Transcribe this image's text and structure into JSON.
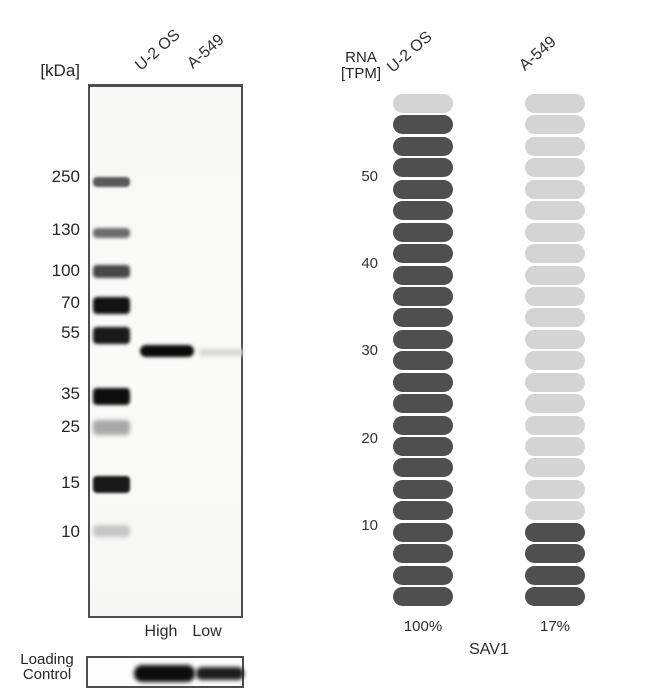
{
  "blot": {
    "unit_label": "[kDa]",
    "markers": [
      "250",
      "130",
      "100",
      "70",
      "55",
      "35",
      "25",
      "15",
      "10"
    ],
    "lanes": [
      {
        "name": "U-2 OS",
        "expression": "High",
        "band": "strong"
      },
      {
        "name": "A-549",
        "expression": "Low",
        "band": "faint"
      }
    ],
    "loading_control": [
      "Loading",
      "Control"
    ]
  },
  "rna": {
    "axis_label_line1": "RNA",
    "axis_label_line2": "[TPM]",
    "gene": "SAV1",
    "columns": [
      {
        "name": "U-2 OS",
        "percent": "100%"
      },
      {
        "name": "A-549",
        "percent": "17%"
      }
    ]
  },
  "chart_data": {
    "type": "bar",
    "subtype": "stacked-pill-columns",
    "title": "",
    "ylabel": "RNA [TPM]",
    "yticks": [
      50,
      40,
      30,
      20,
      10
    ],
    "ylim": [
      0,
      60
    ],
    "tpm_per_pill": 2.5,
    "pills_per_column": 24,
    "categories": [
      "U-2 OS",
      "A-549"
    ],
    "series": [
      {
        "name": "U-2 OS",
        "filled_pills": 23,
        "top_unfilled_pills": 1,
        "value_tpm_approx": 57.5,
        "percent_of_max": "100%"
      },
      {
        "name": "A-549",
        "filled_pills": 4,
        "top_unfilled_pills": 20,
        "value_tpm_approx": 10,
        "percent_of_max": "17%"
      }
    ],
    "legend": "dark = expressed TPM level, light = remainder of scale",
    "gene": "SAV1"
  },
  "colors": {
    "pill_dark": "#4f4f4f",
    "pill_light": "#d4d4d4",
    "text": "#2e2e2e",
    "blot_border": "#4e4e4e"
  }
}
